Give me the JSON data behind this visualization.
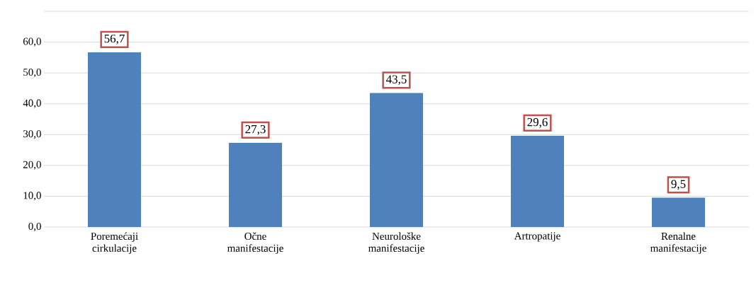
{
  "chart_data": {
    "type": "bar",
    "categories": [
      "Poremećaji cirkulacije",
      "Očne manifestacije",
      "Neurološke manifestacije",
      "Artropatije",
      "Renalne manifestacije"
    ],
    "values": [
      56.7,
      27.3,
      43.5,
      29.6,
      9.5
    ],
    "value_labels": [
      "56,7",
      "27,3",
      "43,5",
      "29,6",
      "9,5"
    ],
    "color": "#4f81bd",
    "ylim": [
      0,
      70
    ],
    "yticks": [
      {
        "value": 0,
        "label": "0,0"
      },
      {
        "value": 10,
        "label": "10,0"
      },
      {
        "value": 20,
        "label": "20,0"
      },
      {
        "value": 30,
        "label": "30,0"
      },
      {
        "value": 40,
        "label": "40,0"
      },
      {
        "value": 50,
        "label": "50,0"
      },
      {
        "value": 60,
        "label": "60,0"
      },
      {
        "value": 70,
        "label": null
      }
    ],
    "grid": "y"
  }
}
